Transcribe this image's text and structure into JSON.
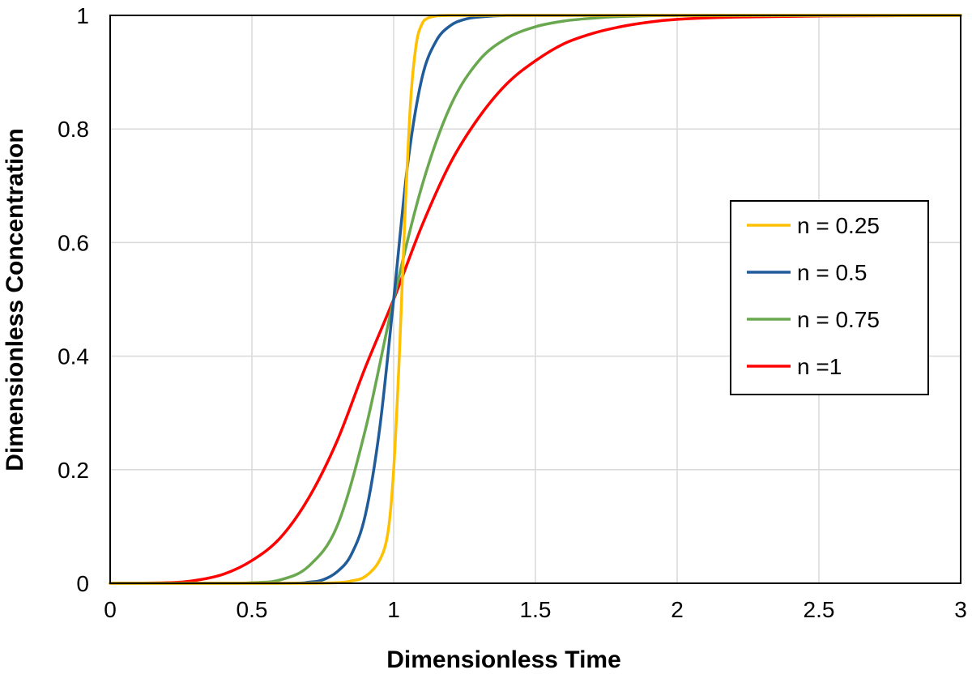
{
  "chart_data": {
    "type": "line",
    "title": "",
    "xlabel": "Dimensionless Time",
    "ylabel": "Dimensionless Concentration",
    "xlim": [
      0,
      3
    ],
    "ylim": [
      0,
      1
    ],
    "x_ticks": [
      "0",
      "0.5",
      "1",
      "1.5",
      "2",
      "2.5",
      "3"
    ],
    "y_ticks": [
      "0",
      "0.2",
      "0.4",
      "0.6",
      "0.8",
      "1"
    ],
    "grid": true,
    "legend_position": "right",
    "series": [
      {
        "name": "n = 0.25",
        "color": "#FFC000",
        "x": [
          0,
          0.5,
          0.7,
          0.8,
          0.85,
          0.9,
          0.95,
          0.98,
          1.0,
          1.02,
          1.04,
          1.06,
          1.08,
          1.1,
          1.12,
          1.15,
          1.2,
          1.3,
          1.5,
          2.0,
          3.0
        ],
        "y": [
          0,
          0,
          0,
          0.001,
          0.004,
          0.012,
          0.04,
          0.09,
          0.2,
          0.4,
          0.65,
          0.85,
          0.95,
          0.985,
          0.995,
          0.999,
          1,
          1,
          1,
          1,
          1
        ]
      },
      {
        "name": "n = 0.5",
        "color": "#1F5C99",
        "x": [
          0,
          0.6,
          0.7,
          0.75,
          0.8,
          0.85,
          0.9,
          0.95,
          1.0,
          1.05,
          1.1,
          1.15,
          1.2,
          1.25,
          1.3,
          1.4,
          1.6,
          2.0,
          3.0
        ],
        "y": [
          0,
          0,
          0.002,
          0.006,
          0.02,
          0.05,
          0.12,
          0.27,
          0.5,
          0.74,
          0.89,
          0.955,
          0.982,
          0.993,
          0.997,
          1,
          1,
          1,
          1
        ]
      },
      {
        "name": "n = 0.75",
        "color": "#6AA84F",
        "x": [
          0,
          0.4,
          0.5,
          0.6,
          0.7,
          0.8,
          0.9,
          1.0,
          1.1,
          1.2,
          1.3,
          1.4,
          1.5,
          1.6,
          1.7,
          1.8,
          2.0,
          2.5,
          3.0
        ],
        "y": [
          0,
          0,
          0.001,
          0.006,
          0.03,
          0.1,
          0.27,
          0.5,
          0.7,
          0.84,
          0.92,
          0.96,
          0.98,
          0.99,
          0.995,
          0.998,
          1,
          1,
          1
        ]
      },
      {
        "name": "n =1",
        "color": "#FF0000",
        "x": [
          0,
          0.2,
          0.3,
          0.4,
          0.5,
          0.6,
          0.7,
          0.8,
          0.9,
          1.0,
          1.1,
          1.2,
          1.3,
          1.4,
          1.5,
          1.6,
          1.7,
          1.8,
          1.9,
          2.0,
          2.2,
          2.5,
          3.0
        ],
        "y": [
          0,
          0.001,
          0.005,
          0.016,
          0.04,
          0.08,
          0.15,
          0.25,
          0.38,
          0.5,
          0.63,
          0.74,
          0.82,
          0.88,
          0.92,
          0.95,
          0.968,
          0.98,
          0.988,
          0.993,
          0.997,
          0.999,
          1
        ]
      }
    ]
  }
}
